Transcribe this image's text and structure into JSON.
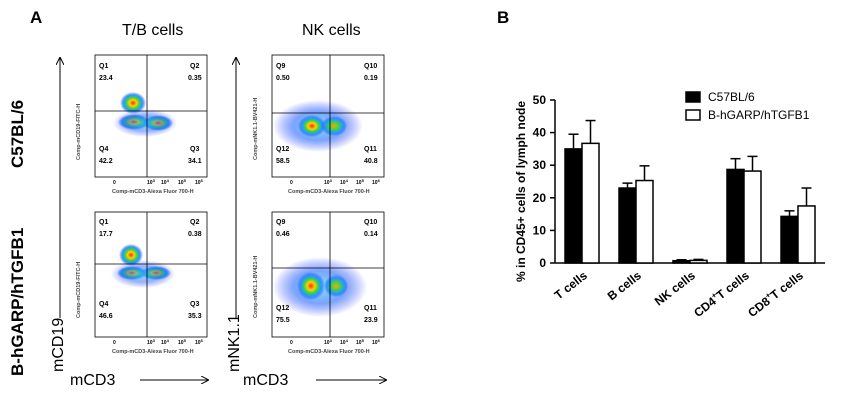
{
  "panel_a": {
    "label": "A",
    "col_titles": [
      "T/B cells",
      "NK cells"
    ],
    "row_labels": [
      "C57BL/6",
      "B-hGARP/hTGFB1"
    ],
    "arrow_labels": {
      "x_left": "mCD3",
      "x_right": "mCD3",
      "y_bottom": "mCD19",
      "y_top": "mNK1.1"
    },
    "x_ticks": [
      "0",
      "10",
      "10",
      "10",
      "10",
      "10",
      "10"
    ],
    "tick_exponents": [
      "",
      "",
      "3",
      "4",
      "5",
      "6",
      ""
    ],
    "tb_plots": {
      "xlabel": "Comp-mCD3-Alexa Fluor 700-H",
      "ylabel": "Comp-mCD19-FITC-H"
    },
    "nk_plots": {
      "xlabel": "Comp-mCD3-Alexa Fluor 700-H",
      "ylabel": "Comp-mNK1.1-BV421-H"
    },
    "quadrants": [
      {
        "labels": [
          "Q1",
          "Q2",
          "Q3",
          "Q4"
        ],
        "values": [
          "23.4",
          "0.35",
          "34.1",
          "42.2"
        ]
      },
      {
        "labels": [
          "Q9",
          "Q10",
          "Q11",
          "Q12"
        ],
        "values": [
          "0.50",
          "0.19",
          "40.8",
          "58.5"
        ]
      },
      {
        "labels": [
          "Q1",
          "Q2",
          "Q3",
          "Q4"
        ],
        "values": [
          "17.7",
          "0.38",
          "35.3",
          "46.6"
        ]
      },
      {
        "labels": [
          "Q9",
          "Q10",
          "Q11",
          "Q12"
        ],
        "values": [
          "0.46",
          "0.14",
          "23.9",
          "75.5"
        ]
      }
    ]
  },
  "panel_b": {
    "label": "B"
  },
  "chart_data": {
    "type": "bar",
    "categories": [
      "T cells",
      "B cells",
      "NK cells",
      "CD4+T cells",
      "CD8+T cells"
    ],
    "category_display": [
      {
        "main": "T cells",
        "sup": "",
        "rest": ""
      },
      {
        "main": "B cells",
        "sup": "",
        "rest": ""
      },
      {
        "main": "NK cells",
        "sup": "",
        "rest": ""
      },
      {
        "main": "CD4",
        "sup": "+",
        "rest": "T cells"
      },
      {
        "main": "CD8",
        "sup": "+",
        "rest": "T cells"
      }
    ],
    "series": [
      {
        "name": "C57BL/6",
        "values": [
          35,
          23,
          0.7,
          28.7,
          14.3
        ],
        "errors": [
          4.5,
          1.5,
          0.3,
          3.3,
          1.7
        ],
        "color": "#000000"
      },
      {
        "name": "B-hGARP/hTGFB1",
        "values": [
          36.7,
          25.3,
          0.8,
          28.2,
          17.5
        ],
        "errors": [
          7,
          4.5,
          0.3,
          4.5,
          5.5
        ],
        "color": "#ffffff"
      }
    ],
    "ylabel": "% in CD45+ cells of lymph node",
    "ylim": [
      0,
      50
    ],
    "yticks": [
      0,
      10,
      20,
      30,
      40,
      50
    ],
    "legend_position": "top-right",
    "grid": false
  }
}
